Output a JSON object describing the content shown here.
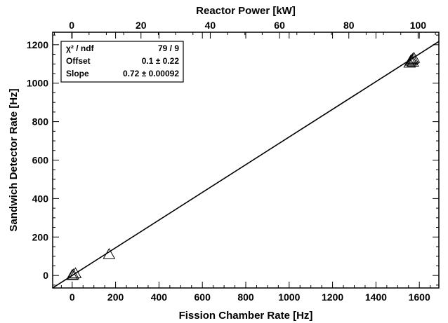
{
  "chart_data": {
    "type": "scatter",
    "xlabel": "Fission Chamber Rate [Hz]",
    "ylabel": "Sandwich Detector Rate [Hz]",
    "top_axis_label": "Reactor Power [kW]",
    "xlim": [
      -90,
      1690
    ],
    "ylim": [
      -65,
      1265
    ],
    "top_xlim": [
      -5.5,
      106
    ],
    "x_ticks": [
      "0",
      "200",
      "400",
      "600",
      "800",
      "1000",
      "1200",
      "1400",
      "1600"
    ],
    "y_ticks": [
      "0",
      "200",
      "400",
      "600",
      "800",
      "1000",
      "1200"
    ],
    "top_ticks": [
      "0",
      "20",
      "40",
      "60",
      "80",
      "100"
    ],
    "points": [
      {
        "x": 0,
        "y": 0
      },
      {
        "x": 5,
        "y": 4
      },
      {
        "x": 15,
        "y": 10
      },
      {
        "x": 170,
        "y": 110
      },
      {
        "x": 1555,
        "y": 1105
      },
      {
        "x": 1560,
        "y": 1115
      },
      {
        "x": 1565,
        "y": 1120
      },
      {
        "x": 1570,
        "y": 1125
      },
      {
        "x": 1575,
        "y": 1130
      },
      {
        "x": 1570,
        "y": 1110
      }
    ],
    "fit": {
      "type": "linear",
      "offset": 0.1,
      "slope": 0.72
    },
    "stats": [
      {
        "label": "χ² / ndf",
        "value": "79 / 9"
      },
      {
        "label": "Offset",
        "value": "0.1 ± 0.22"
      },
      {
        "label": "Slope",
        "value": "0.72 ± 0.00092"
      }
    ],
    "grid": false,
    "stats_position": "top-left"
  }
}
